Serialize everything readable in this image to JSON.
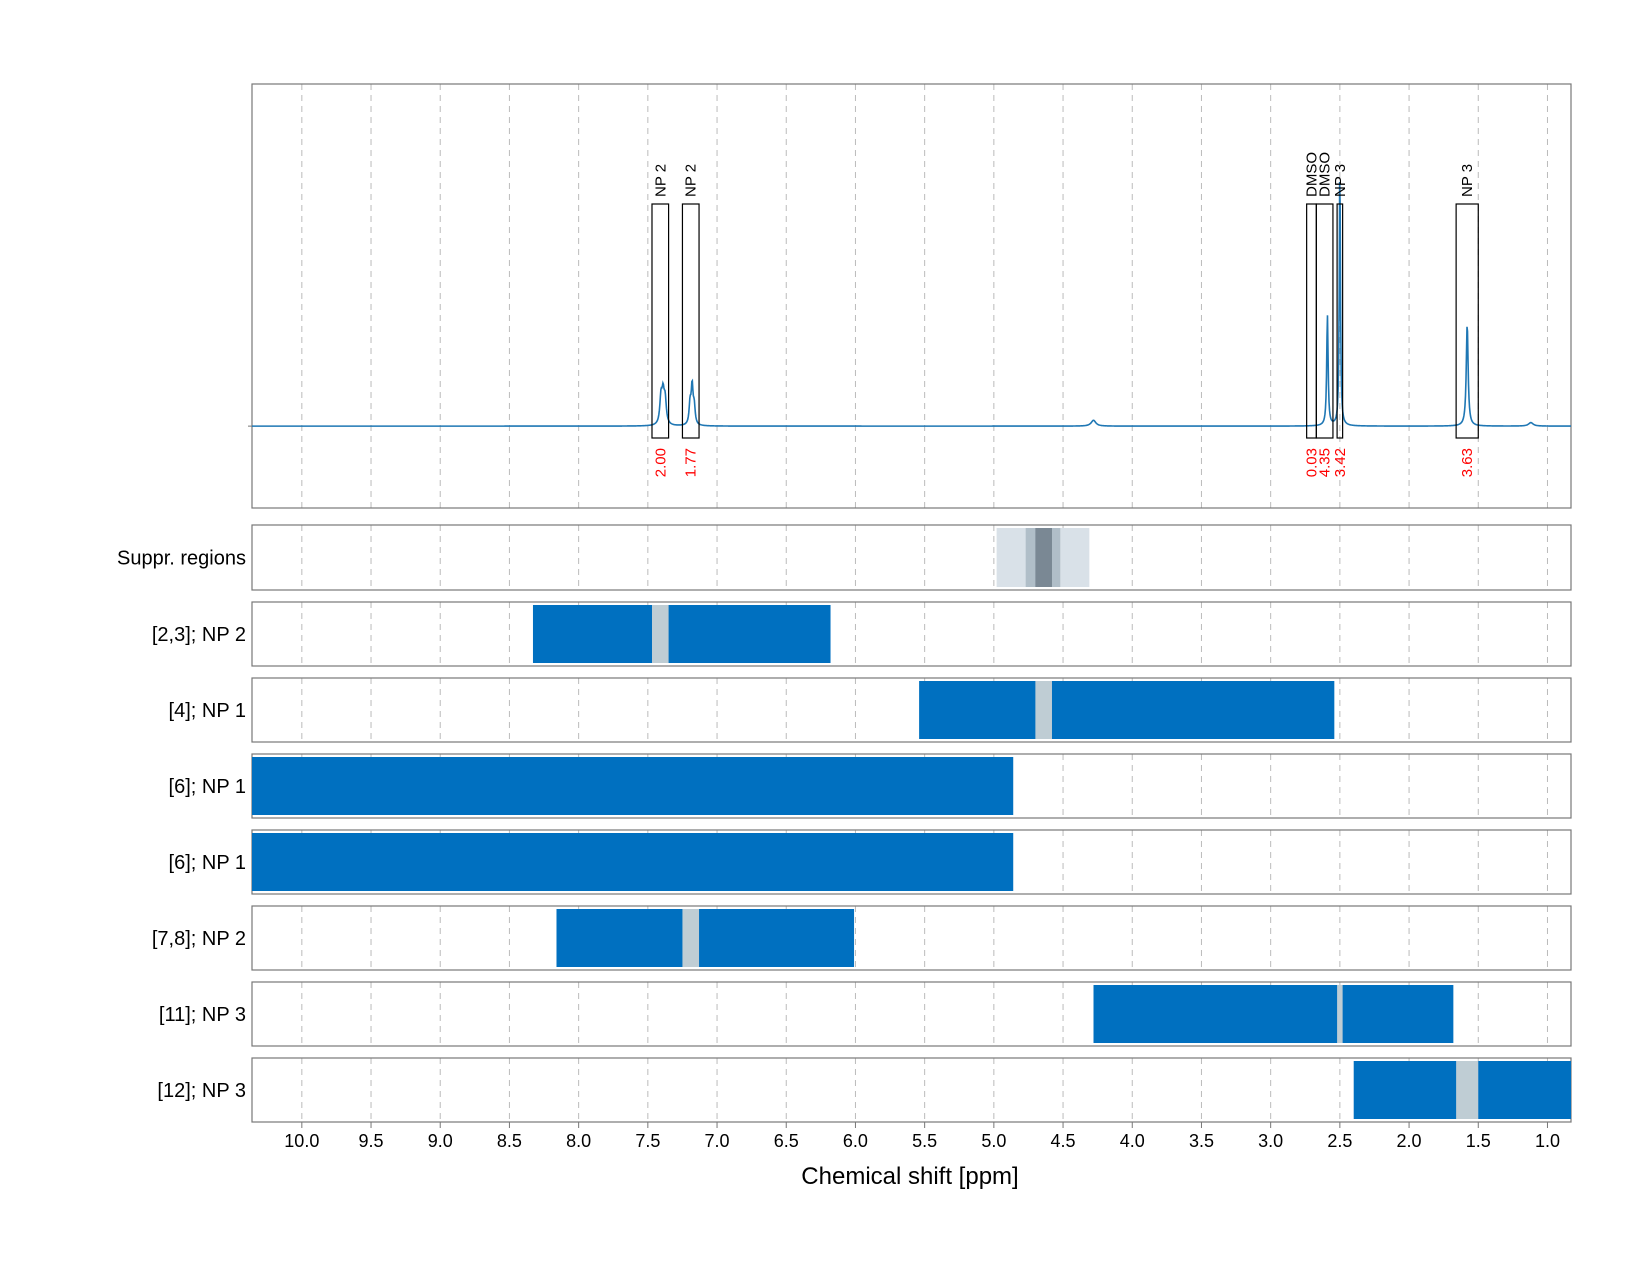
{
  "chart_data": {
    "type": "line",
    "xlabel": "Chemical shift [ppm]",
    "x_reversed": true,
    "xlim": [
      10.36,
      0.83
    ],
    "x_ticks": [
      10.0,
      9.5,
      9.0,
      8.5,
      8.0,
      7.5,
      7.0,
      6.5,
      6.0,
      5.5,
      5.0,
      4.5,
      4.0,
      3.5,
      3.0,
      2.5,
      2.0,
      1.5,
      1.0
    ],
    "x_tick_labels": [
      "10.0",
      "9.5",
      "9.0",
      "8.5",
      "8.0",
      "7.5",
      "7.0",
      "6.5",
      "6.0",
      "5.5",
      "5.0",
      "4.5",
      "4.0",
      "3.5",
      "3.0",
      "2.5",
      "2.0",
      "1.5",
      "1.0"
    ],
    "grid": "vertical dashed",
    "spectrum": {
      "baseline": 0,
      "ylim": [
        -0.28,
        1.17
      ],
      "peaks": [
        {
          "ppm": 7.405,
          "height": 0.09,
          "width": 0.01
        },
        {
          "ppm": 7.39,
          "height": 0.095,
          "width": 0.01
        },
        {
          "ppm": 7.375,
          "height": 0.08,
          "width": 0.01
        },
        {
          "ppm": 7.195,
          "height": 0.07,
          "width": 0.008
        },
        {
          "ppm": 7.18,
          "height": 0.13,
          "width": 0.008
        },
        {
          "ppm": 7.165,
          "height": 0.06,
          "width": 0.008
        },
        {
          "ppm": 4.28,
          "height": 0.02,
          "width": 0.02
        },
        {
          "ppm": 2.59,
          "height": 0.38,
          "width": 0.006
        },
        {
          "ppm": 2.5,
          "height": 0.9,
          "width": 0.005
        },
        {
          "ppm": 1.58,
          "height": 0.35,
          "width": 0.008
        },
        {
          "ppm": 1.12,
          "height": 0.012,
          "width": 0.02
        }
      ],
      "annotations": [
        {
          "label": "NP 2",
          "integral": "2.00",
          "left": 7.47,
          "right": 7.35
        },
        {
          "label": "NP 2",
          "integral": "1.77",
          "left": 7.25,
          "right": 7.13
        },
        {
          "label": "DMSO",
          "integral": "0.03",
          "left": 2.74,
          "right": 2.67
        },
        {
          "label": "DMSO",
          "integral": "4.35",
          "left": 2.67,
          "right": 2.55
        },
        {
          "label": "NP 3",
          "integral": "3.42",
          "left": 2.52,
          "right": 2.48
        },
        {
          "label": "NP 3",
          "integral": "3.63",
          "left": 1.66,
          "right": 1.5
        }
      ]
    },
    "suppression": {
      "label": "Suppr. regions",
      "bands": [
        {
          "from": 4.98,
          "to": 4.31,
          "shade": "light"
        },
        {
          "from": 4.77,
          "to": 4.52,
          "shade": "medium"
        },
        {
          "from": 4.7,
          "to": 4.58,
          "shade": "dark"
        }
      ]
    },
    "rows": [
      {
        "label": "[2,3]; NP 2",
        "from": 8.33,
        "to": 6.18,
        "gap": [
          7.47,
          7.35
        ]
      },
      {
        "label": "[4]; NP 1",
        "from": 5.54,
        "to": 2.54,
        "gap": [
          4.7,
          4.58
        ]
      },
      {
        "label": "[6]; NP 1",
        "from": 10.36,
        "to": 4.86,
        "gap": null
      },
      {
        "label": "[6]; NP 1",
        "from": 10.36,
        "to": 4.86,
        "gap": null
      },
      {
        "label": "[7,8]; NP 2",
        "from": 8.16,
        "to": 6.01,
        "gap": [
          7.25,
          7.13
        ]
      },
      {
        "label": "[11]; NP 3",
        "from": 4.28,
        "to": 1.68,
        "gap": [
          2.52,
          2.48
        ]
      },
      {
        "label": "[12]; NP 3",
        "from": 2.4,
        "to": 0.83,
        "gap": [
          1.66,
          1.5
        ]
      }
    ]
  },
  "colors": {
    "spectrum": "#1f77b4",
    "bar": "#0070c0",
    "gap": "#bfcdd4",
    "integral_text": "#ff0000",
    "supp_light": "#d9e1e8",
    "supp_medium": "#b0bec8",
    "supp_dark": "#7a8894",
    "grid": "#bbbbbb",
    "axes": "#777777"
  }
}
